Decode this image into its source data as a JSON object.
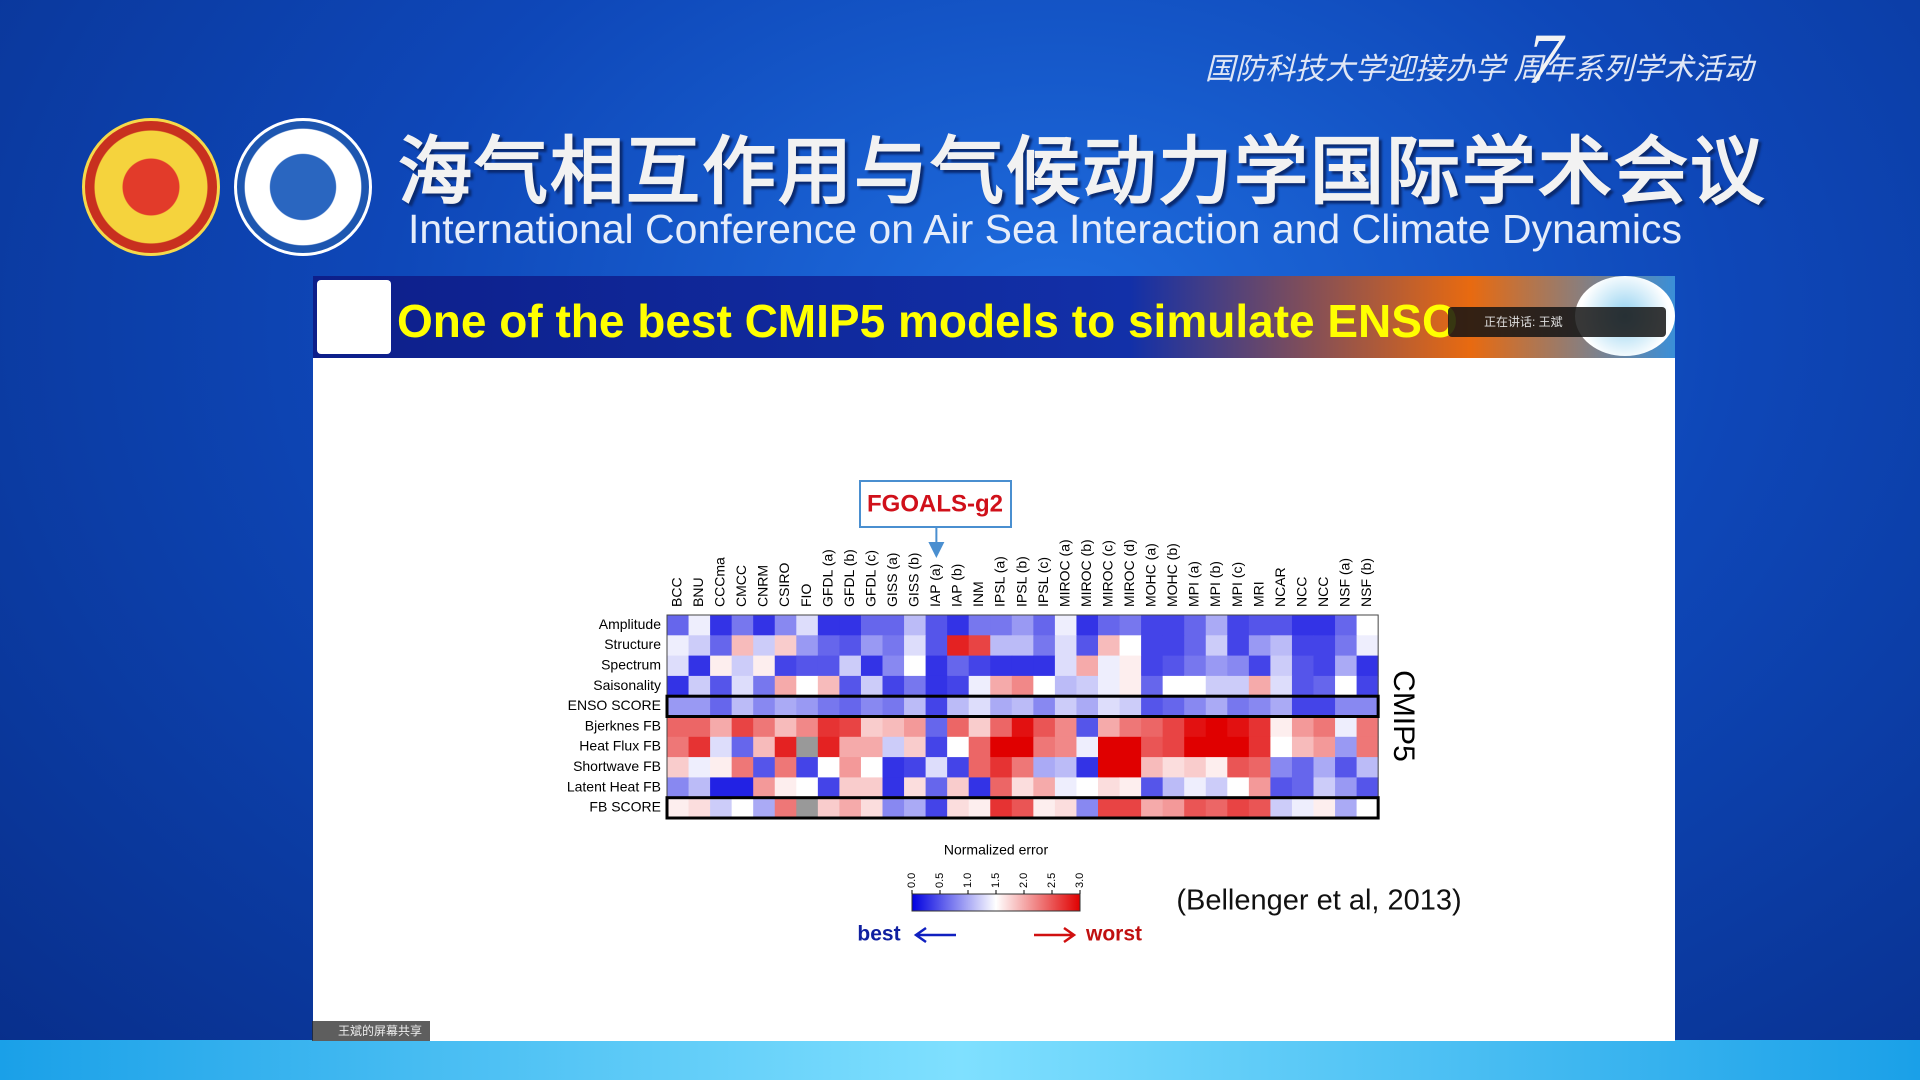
{
  "header": {
    "series": "国防科技大学迎接办学 周年系列学术活动",
    "title_cn": "海气相互作用与气候动力学国际学术会议",
    "title_en": "International Conference on Air Sea Interaction and Climate Dynamics"
  },
  "slide": {
    "title": "One of the best CMIP5 models to simulate ENSO"
  },
  "overlay": {
    "speaking": "正在讲话: 王斌",
    "share": "王斌的屏幕共享"
  },
  "chart_data": {
    "type": "heatmap",
    "annotation": "FGOALS-g2",
    "group_label": "CMIP5",
    "colorbar_label": "Normalized error",
    "best_label": "best",
    "worst_label": "worst",
    "citation": "(Bellenger et al, 2013)",
    "x_categories": [
      "BCC",
      "BNU",
      "CCCma",
      "CMCC",
      "CNRM",
      "CSIRO",
      "FIO",
      "GFDL (a)",
      "GFDL (b)",
      "GFDL (c)",
      "GISS (a)",
      "GISS (b)",
      "IAP (a)",
      "IAP (b)",
      "INM",
      "IPSL (a)",
      "IPSL (b)",
      "IPSL (c)",
      "MIROC (a)",
      "MIROC (b)",
      "MIROC (c)",
      "MIROC (d)",
      "MOHC (a)",
      "MOHC (b)",
      "MPI (a)",
      "MPI (b)",
      "MPI (c)",
      "MRI",
      "NCAR",
      "NCC",
      "NCC",
      "NSF (a)",
      "NSF (b)"
    ],
    "y_categories": [
      "Amplitude",
      "Structure",
      "Spectrum",
      "Saisonality",
      "ENSO SCORE",
      "Bjerknes FB",
      "Heat Flux FB",
      "Shortwave FB",
      "Latent Heat FB",
      "FB SCORE"
    ],
    "values": [
      [
        0.6,
        1.4,
        0.3,
        0.7,
        0.3,
        0.8,
        1.3,
        0.3,
        0.3,
        0.6,
        0.6,
        1.1,
        0.5,
        0.3,
        0.7,
        0.7,
        0.9,
        0.6,
        1.4,
        0.3,
        0.6,
        0.7,
        0.4,
        0.4,
        0.6,
        1.0,
        0.4,
        0.5,
        0.5,
        0.3,
        0.3,
        0.6,
        1.5
      ],
      [
        1.4,
        1.2,
        0.6,
        1.9,
        1.2,
        1.8,
        0.9,
        0.6,
        0.5,
        0.9,
        0.7,
        1.3,
        0.5,
        2.8,
        2.6,
        1.1,
        1.1,
        0.7,
        1.3,
        0.5,
        1.9,
        1.5,
        0.4,
        0.4,
        0.6,
        1.2,
        0.4,
        0.9,
        1.1,
        0.4,
        0.4,
        0.7,
        1.4
      ],
      [
        1.3,
        0.3,
        1.6,
        1.2,
        1.6,
        0.4,
        0.5,
        0.5,
        1.2,
        0.3,
        0.8,
        1.5,
        0.3,
        0.6,
        0.4,
        0.3,
        0.3,
        0.3,
        1.3,
        2.0,
        1.4,
        1.6,
        0.4,
        0.5,
        0.7,
        0.9,
        0.8,
        0.4,
        1.2,
        0.5,
        0.4,
        1.0,
        0.3
      ],
      [
        0.3,
        1.2,
        0.5,
        1.3,
        0.7,
        2.0,
        1.5,
        1.9,
        0.5,
        1.2,
        0.4,
        0.7,
        0.3,
        0.4,
        1.4,
        2.0,
        2.2,
        1.5,
        1.1,
        1.2,
        1.4,
        1.6,
        0.6,
        1.5,
        1.5,
        1.2,
        1.2,
        2.0,
        1.3,
        0.5,
        0.6,
        1.5,
        0.4
      ],
      [
        0.9,
        0.9,
        0.6,
        1.1,
        0.8,
        1.0,
        0.9,
        0.7,
        0.6,
        0.8,
        0.7,
        1.1,
        0.4,
        1.1,
        1.3,
        1.0,
        1.1,
        0.8,
        1.2,
        1.0,
        1.3,
        1.2,
        0.5,
        0.6,
        0.8,
        1.0,
        0.7,
        0.8,
        1.0,
        0.4,
        0.4,
        0.8,
        0.8
      ],
      [
        2.4,
        2.4,
        2.0,
        2.6,
        2.3,
        1.9,
        2.2,
        2.7,
        2.6,
        1.8,
        1.9,
        2.1,
        0.6,
        2.4,
        1.8,
        2.4,
        2.9,
        2.5,
        2.2,
        0.5,
        2.0,
        2.3,
        2.4,
        2.6,
        2.9,
        3.0,
        2.9,
        2.7,
        1.6,
        2.1,
        2.3,
        1.4,
        2.3
      ],
      [
        2.3,
        2.7,
        1.3,
        0.6,
        1.9,
        2.8,
        null,
        2.8,
        2.0,
        2.0,
        1.2,
        1.8,
        0.4,
        1.5,
        2.4,
        3.0,
        3.0,
        2.3,
        2.2,
        1.4,
        3.0,
        3.0,
        2.5,
        2.6,
        3.0,
        3.0,
        3.0,
        2.7,
        1.5,
        1.9,
        2.1,
        0.9,
        2.3
      ],
      [
        1.8,
        1.4,
        1.6,
        2.3,
        0.5,
        2.3,
        0.4,
        1.5,
        2.1,
        1.5,
        0.3,
        0.4,
        1.3,
        0.4,
        2.4,
        2.7,
        2.3,
        1.0,
        1.1,
        0.3,
        3.0,
        3.0,
        1.9,
        1.7,
        1.8,
        1.6,
        2.5,
        2.4,
        0.8,
        0.6,
        1.0,
        0.5,
        1.1
      ],
      [
        0.8,
        1.1,
        0.2,
        0.2,
        2.1,
        1.6,
        1.5,
        0.4,
        1.8,
        1.8,
        0.3,
        1.7,
        0.6,
        1.8,
        0.3,
        2.4,
        1.7,
        2.0,
        1.4,
        1.5,
        1.7,
        1.6,
        0.5,
        1.1,
        1.4,
        1.2,
        1.5,
        2.1,
        0.5,
        0.6,
        1.2,
        0.9,
        0.5
      ],
      [
        1.6,
        1.7,
        1.2,
        1.5,
        1.0,
        2.3,
        null,
        1.8,
        2.0,
        1.7,
        0.8,
        1.0,
        0.4,
        1.7,
        1.6,
        2.7,
        2.5,
        1.6,
        1.7,
        0.8,
        2.6,
        2.6,
        2.0,
        2.1,
        2.5,
        2.4,
        2.6,
        2.5,
        1.2,
        1.4,
        1.6,
        1.0,
        1.5
      ]
    ],
    "highlight_column": 12,
    "boxed_rows": [
      4,
      9
    ],
    "missing_color": "#999999",
    "colors": [
      "#0000e0",
      "#ffffff",
      "#e00000"
    ],
    "clim": [
      0,
      3
    ],
    "cticks": [
      {
        "value": 0,
        "label": "0.0"
      },
      0.5,
      {
        "value": 1,
        "label": "1.0"
      },
      1.5,
      {
        "value": 2,
        "label": "2.0"
      },
      2.5,
      {
        "value": 3,
        "label": "3.0"
      }
    ]
  }
}
